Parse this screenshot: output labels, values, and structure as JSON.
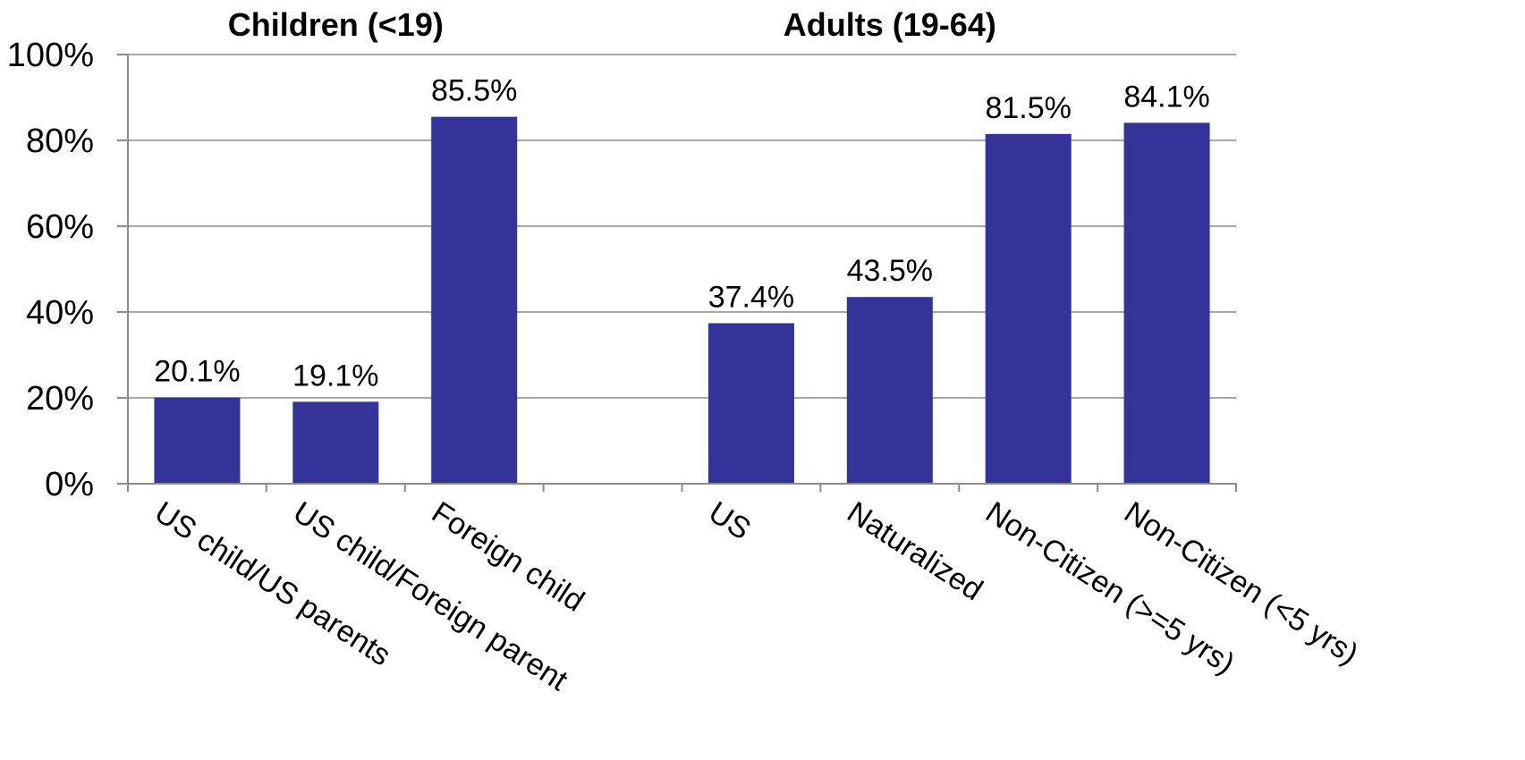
{
  "chart_data": {
    "type": "bar",
    "groups": [
      {
        "title": "Children (<19)",
        "categories": [
          "US child/US parents",
          "US child/Foreign parent",
          "Foreign child"
        ]
      },
      {
        "title": "Adults (19-64)",
        "categories": [
          "US",
          "Naturalized",
          "Non-Citizen (>=5 yrs)",
          "Non-Citizen (<5 yrs)"
        ]
      }
    ],
    "categories": [
      "US child/US parents",
      "US child/Foreign parent",
      "Foreign child",
      "",
      "US",
      "Naturalized",
      "Non-Citizen (>=5 yrs)",
      "Non-Citizen (<5 yrs)"
    ],
    "values": [
      20.1,
      19.1,
      85.5,
      null,
      37.4,
      43.5,
      81.5,
      84.1
    ],
    "data_labels": [
      "20.1%",
      "19.1%",
      "85.5%",
      "",
      "37.4%",
      "43.5%",
      "81.5%",
      "84.1%"
    ],
    "ylim": [
      0,
      100
    ],
    "yticks": [
      0,
      20,
      40,
      60,
      80,
      100
    ],
    "ytick_labels": [
      "0%",
      "20%",
      "40%",
      "60%",
      "80%",
      "100%"
    ],
    "bar_color": "#333399",
    "grid": true,
    "legend": "none"
  }
}
